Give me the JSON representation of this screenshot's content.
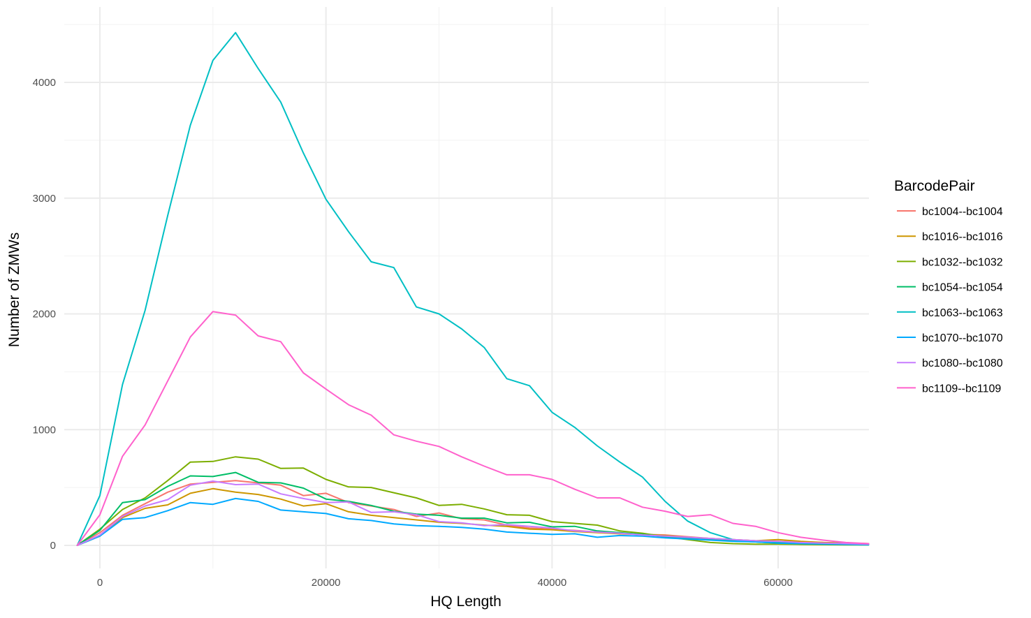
{
  "chart_data": {
    "type": "line",
    "title": "",
    "xlabel": "HQ Length",
    "ylabel": "Number of ZMWs",
    "xlim": [
      -2000,
      68000
    ],
    "ylim": [
      -200,
      4480
    ],
    "x_ticks": [
      0,
      20000,
      40000,
      60000
    ],
    "y_ticks": [
      0,
      1000,
      2000,
      3000,
      4000
    ],
    "grid": true,
    "legend_title": "BarcodePair",
    "legend_position": "right",
    "x": [
      -2000,
      0,
      2000,
      4000,
      6000,
      8000,
      10000,
      12000,
      14000,
      16000,
      18000,
      20000,
      22000,
      24000,
      26000,
      28000,
      30000,
      32000,
      34000,
      36000,
      38000,
      40000,
      42000,
      44000,
      46000,
      48000,
      50000,
      52000,
      54000,
      56000,
      58000,
      60000,
      62000,
      64000,
      66000,
      68000
    ],
    "series": [
      {
        "name": "bc1004--bc1004",
        "color": "#F8766D",
        "values": [
          0,
          110,
          260,
          360,
          460,
          530,
          545,
          560,
          540,
          520,
          430,
          450,
          370,
          340,
          310,
          250,
          280,
          230,
          220,
          175,
          150,
          140,
          130,
          115,
          100,
          95,
          90,
          75,
          60,
          50,
          40,
          35,
          30,
          25,
          20,
          15
        ]
      },
      {
        "name": "bc1016--bc1016",
        "color": "#CD9600",
        "values": [
          0,
          80,
          240,
          320,
          350,
          450,
          490,
          460,
          440,
          400,
          340,
          360,
          290,
          260,
          240,
          220,
          200,
          190,
          175,
          165,
          140,
          135,
          120,
          110,
          100,
          95,
          85,
          70,
          60,
          50,
          40,
          50,
          35,
          25,
          20,
          15
        ]
      },
      {
        "name": "bc1032--bc1032",
        "color": "#7CAE00",
        "values": [
          0,
          140,
          310,
          410,
          560,
          720,
          725,
          765,
          745,
          665,
          668,
          570,
          505,
          500,
          455,
          410,
          345,
          355,
          315,
          265,
          260,
          205,
          190,
          175,
          125,
          105,
          75,
          50,
          25,
          15,
          10,
          10,
          8,
          6,
          5,
          4
        ]
      },
      {
        "name": "bc1054--bc1054",
        "color": "#00BE67",
        "values": [
          0,
          130,
          370,
          395,
          510,
          600,
          595,
          630,
          545,
          540,
          495,
          400,
          380,
          345,
          295,
          270,
          260,
          235,
          235,
          195,
          200,
          160,
          165,
          125,
          110,
          95,
          75,
          60,
          50,
          40,
          30,
          25,
          20,
          18,
          15,
          12
        ]
      },
      {
        "name": "bc1063--bc1063",
        "color": "#00BFC4",
        "values": [
          0,
          430,
          1390,
          2030,
          2850,
          3630,
          4190,
          4430,
          4120,
          3830,
          3390,
          2990,
          2710,
          2450,
          2400,
          2060,
          2000,
          1870,
          1710,
          1440,
          1380,
          1150,
          1020,
          860,
          720,
          590,
          380,
          210,
          110,
          50,
          30,
          20,
          15,
          10,
          8,
          5
        ]
      },
      {
        "name": "bc1070--bc1070",
        "color": "#00A9FF",
        "values": [
          0,
          80,
          225,
          240,
          300,
          370,
          355,
          405,
          380,
          305,
          290,
          275,
          230,
          215,
          185,
          170,
          165,
          155,
          140,
          115,
          105,
          95,
          100,
          70,
          85,
          80,
          65,
          55,
          45,
          35,
          30,
          20,
          15,
          12,
          10,
          8
        ]
      },
      {
        "name": "bc1080--bc1080",
        "color": "#C77CFF",
        "values": [
          0,
          90,
          250,
          340,
          395,
          520,
          555,
          525,
          530,
          445,
          405,
          370,
          375,
          285,
          290,
          265,
          205,
          195,
          170,
          180,
          165,
          150,
          125,
          115,
          105,
          90,
          80,
          70,
          60,
          50,
          40,
          35,
          25,
          20,
          15,
          10
        ]
      },
      {
        "name": "bc1109--bc1109",
        "color": "#FF61CC",
        "values": [
          0,
          265,
          770,
          1040,
          1420,
          1800,
          2020,
          1990,
          1810,
          1760,
          1490,
          1350,
          1215,
          1125,
          955,
          900,
          855,
          765,
          685,
          610,
          610,
          570,
          485,
          410,
          410,
          330,
          295,
          250,
          265,
          190,
          165,
          110,
          70,
          45,
          25,
          15
        ]
      }
    ]
  }
}
